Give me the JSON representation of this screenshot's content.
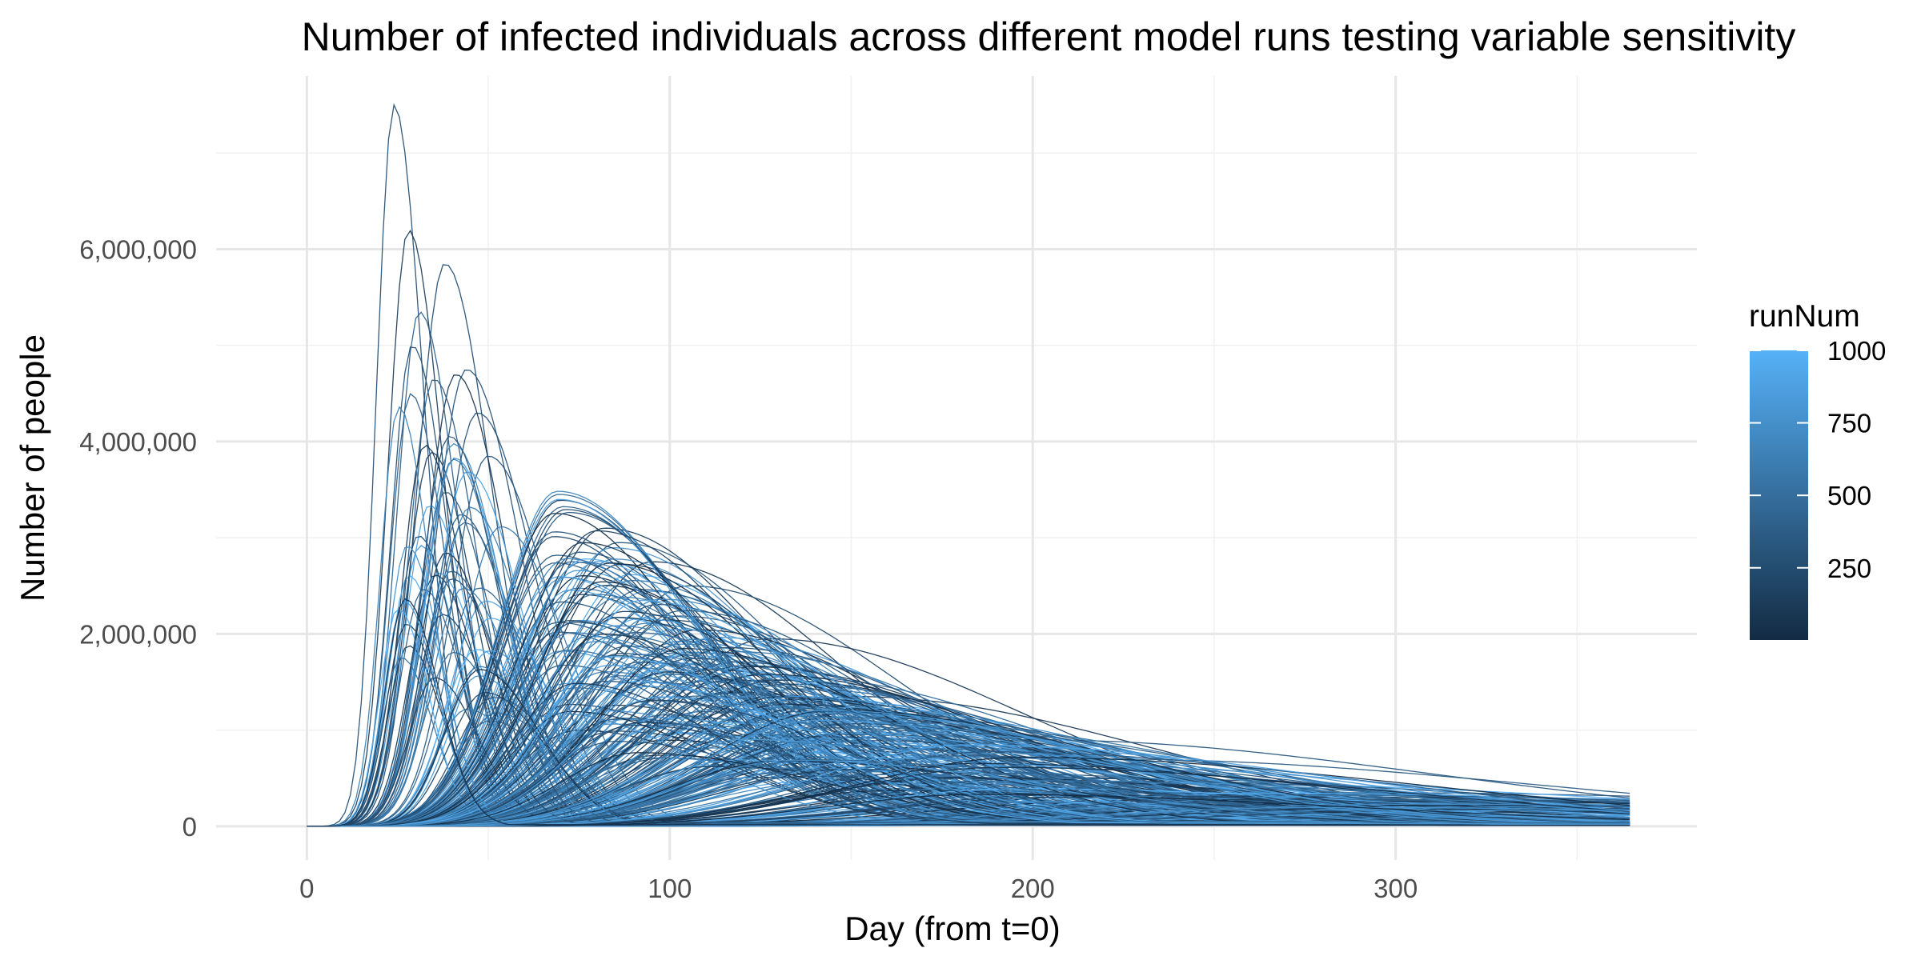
{
  "chart_data": {
    "type": "line",
    "title": "Number of infected individuals across different model runs testing variable sensitivity",
    "xlabel": "Day (from t=0)",
    "ylabel": "Number of people",
    "xlim": [
      -25,
      383
    ],
    "ylim": [
      -350000,
      7800000
    ],
    "x_ticks": [
      0,
      100,
      200,
      300
    ],
    "x_tick_labels": [
      "0",
      "100",
      "200",
      "300"
    ],
    "x_minor": [
      50,
      150,
      250,
      350
    ],
    "y_ticks": [
      0,
      2000000,
      4000000,
      6000000
    ],
    "y_tick_labels": [
      "0",
      "2,000,000",
      "4,000,000",
      "6,000,000"
    ],
    "y_minor": [
      1000000,
      3000000,
      5000000,
      7000000
    ],
    "grid": true,
    "x_day_range": [
      0,
      365
    ],
    "n_runs": 1000,
    "representative_runs": [
      {
        "peak_day": 24,
        "peak": 7500000
      },
      {
        "peak_day": 28,
        "peak": 6200000
      },
      {
        "peak_day": 38,
        "peak": 5850000
      },
      {
        "peak_day": 31,
        "peak": 5350000
      },
      {
        "peak_day": 29,
        "peak": 5000000
      },
      {
        "peak_day": 44,
        "peak": 4750000
      },
      {
        "peak_day": 41,
        "peak": 4700000
      },
      {
        "peak_day": 35,
        "peak": 4650000
      },
      {
        "peak_day": 47,
        "peak": 4300000
      },
      {
        "peak_day": 50,
        "peak": 3850000
      },
      {
        "peak_day": 75,
        "peak": 2850000
      },
      {
        "peak_day": 82,
        "peak": 3100000
      },
      {
        "peak_day": 86,
        "peak": 2950000
      },
      {
        "peak_day": 95,
        "peak": 2750000
      },
      {
        "peak_day": 105,
        "peak": 2500000
      },
      {
        "peak_day": 127,
        "peak": 1950000
      },
      {
        "peak_day": 150,
        "peak": 1350000
      },
      {
        "peak_day": 200,
        "peak": 900000
      },
      {
        "peak_day": 220,
        "peak": 700000
      },
      {
        "peak_day": 290,
        "peak": 350000
      }
    ],
    "legend": {
      "title": "runNum",
      "placement": "right",
      "type": "colorbar",
      "range": [
        1,
        1000
      ],
      "ticks": [
        250,
        500,
        750,
        1000
      ],
      "tick_labels": [
        "250",
        "500",
        "750",
        "1000"
      ],
      "color_low": "#132b43",
      "color_high": "#56b1f7"
    }
  }
}
